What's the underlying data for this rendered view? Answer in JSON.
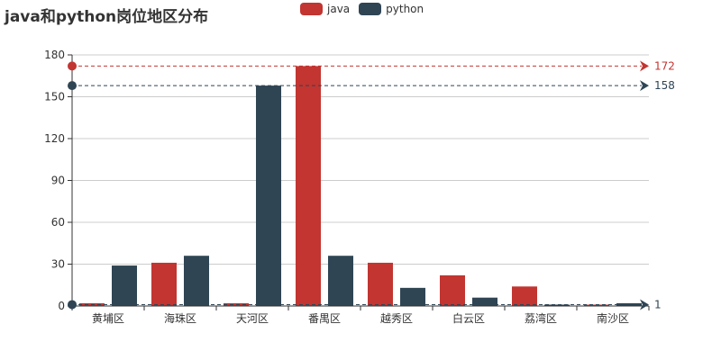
{
  "chart_data": {
    "type": "bar",
    "title": "java和python岗位地区分布",
    "categories": [
      "黄埔区",
      "海珠区",
      "天河区",
      "番禺区",
      "越秀区",
      "白云区",
      "荔湾区",
      "南沙区"
    ],
    "series": [
      {
        "name": "java",
        "color": "#c23531",
        "values": [
          2,
          31,
          2,
          172,
          31,
          22,
          14,
          1
        ]
      },
      {
        "name": "python",
        "color": "#2f4554",
        "values": [
          29,
          36,
          158,
          36,
          13,
          6,
          1,
          2
        ]
      }
    ],
    "yticks": [
      "0",
      "30",
      "60",
      "90",
      "120",
      "150",
      "180"
    ],
    "ylim": [
      0,
      180
    ],
    "grid": "horizontal",
    "legend_position": "top-center",
    "mark_lines": [
      {
        "series": "java",
        "type": "max",
        "value": 172,
        "label": "172",
        "color": "#c23531"
      },
      {
        "series": "python",
        "type": "max",
        "value": 158,
        "label": "158",
        "color": "#2f4554"
      },
      {
        "series": "python",
        "type": "min",
        "value": 1,
        "label": "1",
        "color": "#2f4554"
      }
    ]
  }
}
